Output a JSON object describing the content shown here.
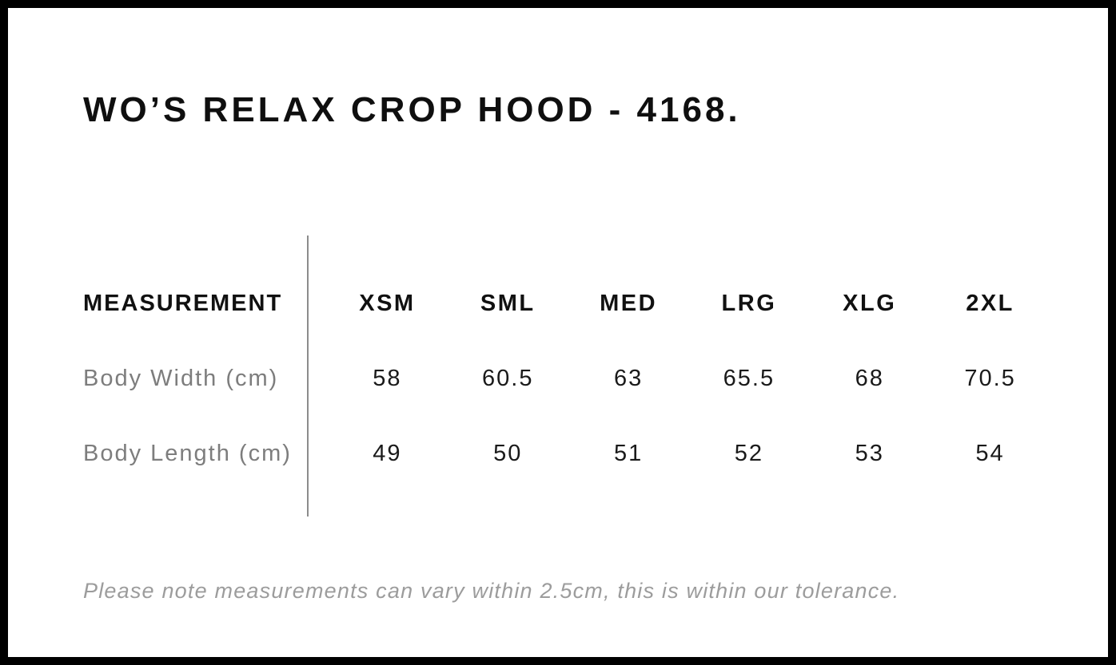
{
  "page": {
    "title": "WO’S RELAX CROP HOOD - 4168.",
    "tolerance_note": "Please note measurements can vary within 2.5cm, this is within our tolerance."
  },
  "size_chart": {
    "measurement_header": "MEASUREMENT",
    "sizes": [
      "XSM",
      "SML",
      "MED",
      "LRG",
      "XLG",
      "2XL"
    ],
    "rows": [
      {
        "label": "Body Width (cm)",
        "values": [
          "58",
          "60.5",
          "63",
          "65.5",
          "68",
          "70.5"
        ]
      },
      {
        "label": "Body Length (cm)",
        "values": [
          "49",
          "50",
          "51",
          "52",
          "53",
          "54"
        ]
      }
    ]
  },
  "colors": {
    "text_primary": "#111111",
    "label_gray": "#7d7d7d",
    "note_gray": "#9c9c9c",
    "divider_gray": "#8c8c8c",
    "frame_black": "#000000",
    "background": "#ffffff"
  },
  "chart_data": {
    "type": "table",
    "title": "WO’S RELAX CROP HOOD - 4168.",
    "columns": [
      "MEASUREMENT",
      "XSM",
      "SML",
      "MED",
      "LRG",
      "XLG",
      "2XL"
    ],
    "rows": [
      {
        "measurement": "Body Width (cm)",
        "values": [
          58,
          60.5,
          63,
          65.5,
          68,
          70.5
        ]
      },
      {
        "measurement": "Body Length (cm)",
        "values": [
          49,
          50,
          51,
          52,
          53,
          54
        ]
      }
    ],
    "note": "Please note measurements can vary within 2.5cm, this is within our tolerance."
  }
}
